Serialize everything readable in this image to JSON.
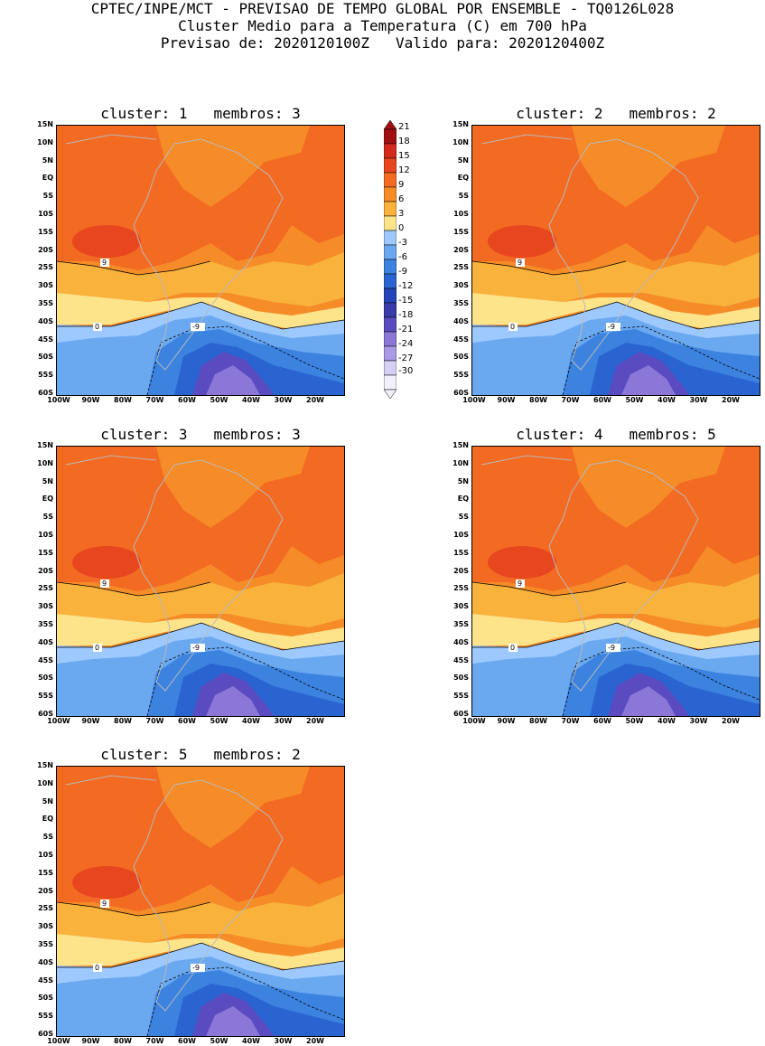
{
  "header": {
    "line1": "CPTEC/INPE/MCT - PREVISAO DE TEMPO GLOBAL POR ENSEMBLE - TQ0126L028",
    "line2": "Cluster Medio para a Temperatura (C) em 700 hPa",
    "line3": "Previsao de: 2020120100Z   Valido para: 2020120400Z"
  },
  "lat_labels": [
    "15N",
    "10N",
    "5N",
    "EQ",
    "5S",
    "10S",
    "15S",
    "20S",
    "25S",
    "30S",
    "35S",
    "40S",
    "45S",
    "50S",
    "55S",
    "60S"
  ],
  "lon_labels": [
    "100W",
    "90W",
    "80W",
    "70W",
    "60W",
    "50W",
    "40W",
    "30W",
    "20W"
  ],
  "colorbar": {
    "labels": [
      "21",
      "18",
      "15",
      "12",
      "9",
      "6",
      "3",
      "0",
      "-3",
      "-6",
      "-9",
      "-12",
      "-15",
      "-18",
      "-21",
      "-24",
      "-27",
      "-30"
    ],
    "colors": [
      "#a01010",
      "#d32a1c",
      "#e8461f",
      "#f36a22",
      "#f58c28",
      "#f9b23c",
      "#fde38a",
      "#9ec9ff",
      "#6aa8f0",
      "#3c83e0",
      "#2a64d0",
      "#2445b8",
      "#3a3aa8",
      "#5a4bc0",
      "#8a77d8",
      "#a89ae4",
      "#d6d0f4",
      "#f2f0fa"
    ]
  },
  "panels": [
    {
      "title": "cluster: 1   membros: 3"
    },
    {
      "title": "cluster: 2   membros: 2"
    },
    {
      "title": "cluster: 3   membros: 3"
    },
    {
      "title": "cluster: 4   membros: 5"
    },
    {
      "title": "cluster: 5   membros: 2"
    }
  ],
  "contour_labels": {
    "warm": "9",
    "zero": "0",
    "cold": "-9"
  }
}
